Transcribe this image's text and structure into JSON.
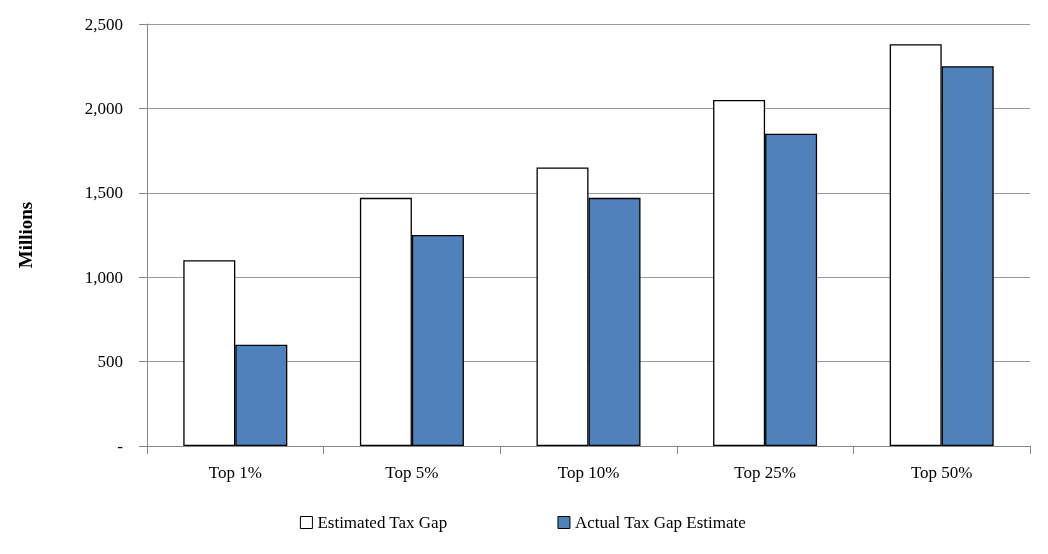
{
  "chart_data": {
    "type": "bar",
    "ylabel": "Millions",
    "categories": [
      "Top 1%",
      "Top 5%",
      "Top 10%",
      "Top 25%",
      "Top 50%"
    ],
    "series": [
      {
        "name": "Estimated Tax Gap",
        "color": "#ffffff",
        "values": [
          1100,
          1470,
          1650,
          2050,
          2380
        ]
      },
      {
        "name": "Actual Tax Gap Estimate",
        "color": "#4f81bd",
        "values": [
          600,
          1250,
          1470,
          1850,
          2250
        ]
      }
    ],
    "ylim": [
      0,
      2500
    ],
    "yticks": [
      {
        "value": 0,
        "label": "-"
      },
      500,
      {
        "value": 1000,
        "label": "1,000"
      },
      {
        "value": 1500,
        "label": "1,500"
      },
      {
        "value": 2000,
        "label": "2,000"
      },
      {
        "value": 2500,
        "label": "2,500"
      }
    ],
    "grid": "y",
    "legend": "bottom"
  }
}
